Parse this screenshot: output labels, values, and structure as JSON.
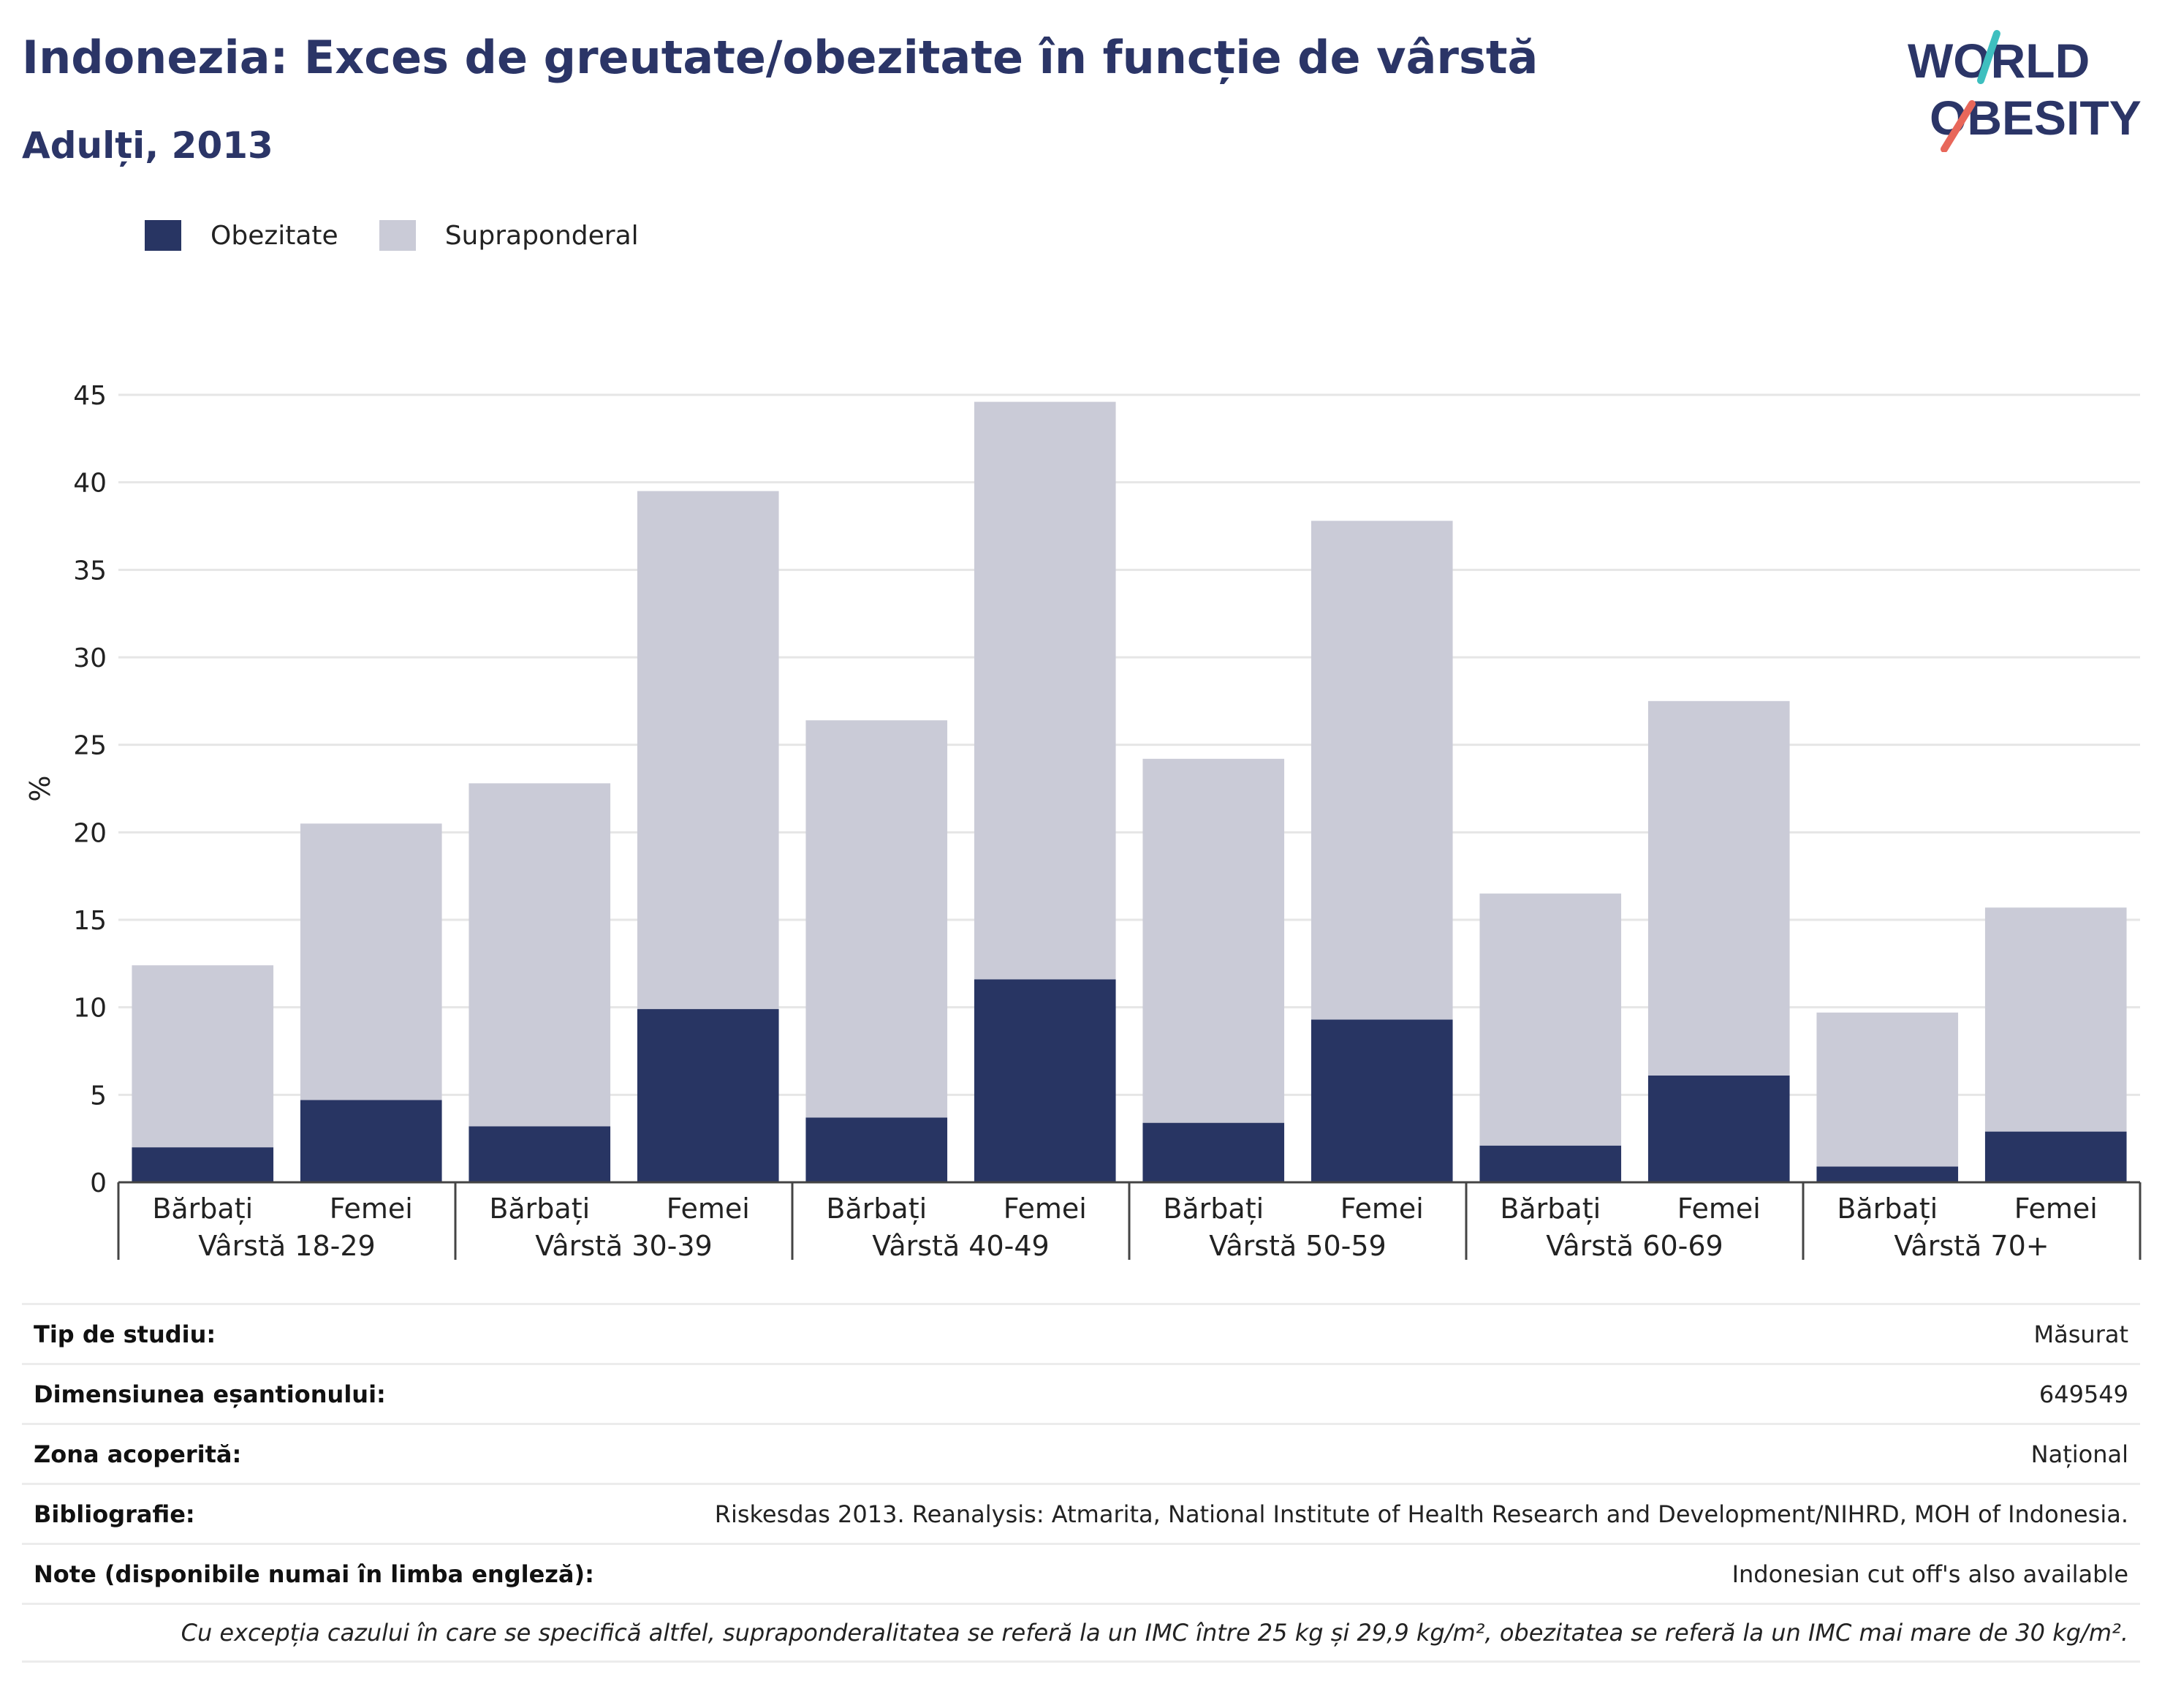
{
  "header": {
    "title": "Indonezia: Exces de greutate/obezitate în funcție de vârstă",
    "subtitle": "Adulți, 2013"
  },
  "logo": {
    "line1": "WORLD",
    "line2": "OBESITY"
  },
  "colors": {
    "obesity": "#283563",
    "overweight": "#cacbd7",
    "title": "#2b3567",
    "logo_teal": "#3ebfbf",
    "logo_red": "#e8675a"
  },
  "legend": [
    {
      "name": "Obezitate",
      "color": "#283563"
    },
    {
      "name": "Supraponderal",
      "color": "#cacbd7"
    }
  ],
  "chart_data": {
    "type": "bar",
    "stacked": true,
    "ylabel": "%",
    "ylim": [
      0,
      45
    ],
    "yticks": [
      0,
      5,
      10,
      15,
      20,
      25,
      30,
      35,
      40,
      45
    ],
    "groups": [
      "Vârstă 18-29",
      "Vârstă 30-39",
      "Vârstă 40-49",
      "Vârstă 50-59",
      "Vârstă 60-69",
      "Vârstă 70+"
    ],
    "subcategories": [
      "Bărbați",
      "Femei"
    ],
    "categories": [
      "Bărbați",
      "Femei",
      "Bărbați",
      "Femei",
      "Bărbați",
      "Femei",
      "Bărbați",
      "Femei",
      "Bărbați",
      "Femei",
      "Bărbați",
      "Femei"
    ],
    "series": [
      {
        "name": "Obezitate",
        "values": [
          2.0,
          4.7,
          3.2,
          9.9,
          3.7,
          11.6,
          3.4,
          9.3,
          2.1,
          6.1,
          0.9,
          2.9
        ]
      },
      {
        "name": "Supraponderal",
        "values": [
          10.4,
          15.8,
          19.6,
          29.6,
          22.7,
          33.0,
          20.8,
          28.5,
          14.4,
          21.4,
          8.8,
          12.8
        ]
      }
    ],
    "grid": true,
    "legend_position": "top-left"
  },
  "info": {
    "rows": [
      {
        "label": "Tip de studiu:",
        "value": "Măsurat"
      },
      {
        "label": "Dimensiunea eșantionului:",
        "value": "649549"
      },
      {
        "label": "Zona acoperită:",
        "value": "Național"
      },
      {
        "label": "Bibliografie:",
        "value": "Riskesdas 2013. Reanalysis: Atmarita, National Institute of Health Research and Development/NIHRD, MOH of Indonesia."
      },
      {
        "label": "Note (disponibile numai în limba engleză):",
        "value": "Indonesian cut off's also available"
      }
    ],
    "footnote": "Cu excepția cazului în care se specifică altfel, supraponderalitatea se referă la un IMC între 25 kg și 29,9 kg/m², obezitatea se referă la un IMC mai mare de 30 kg/m²."
  }
}
